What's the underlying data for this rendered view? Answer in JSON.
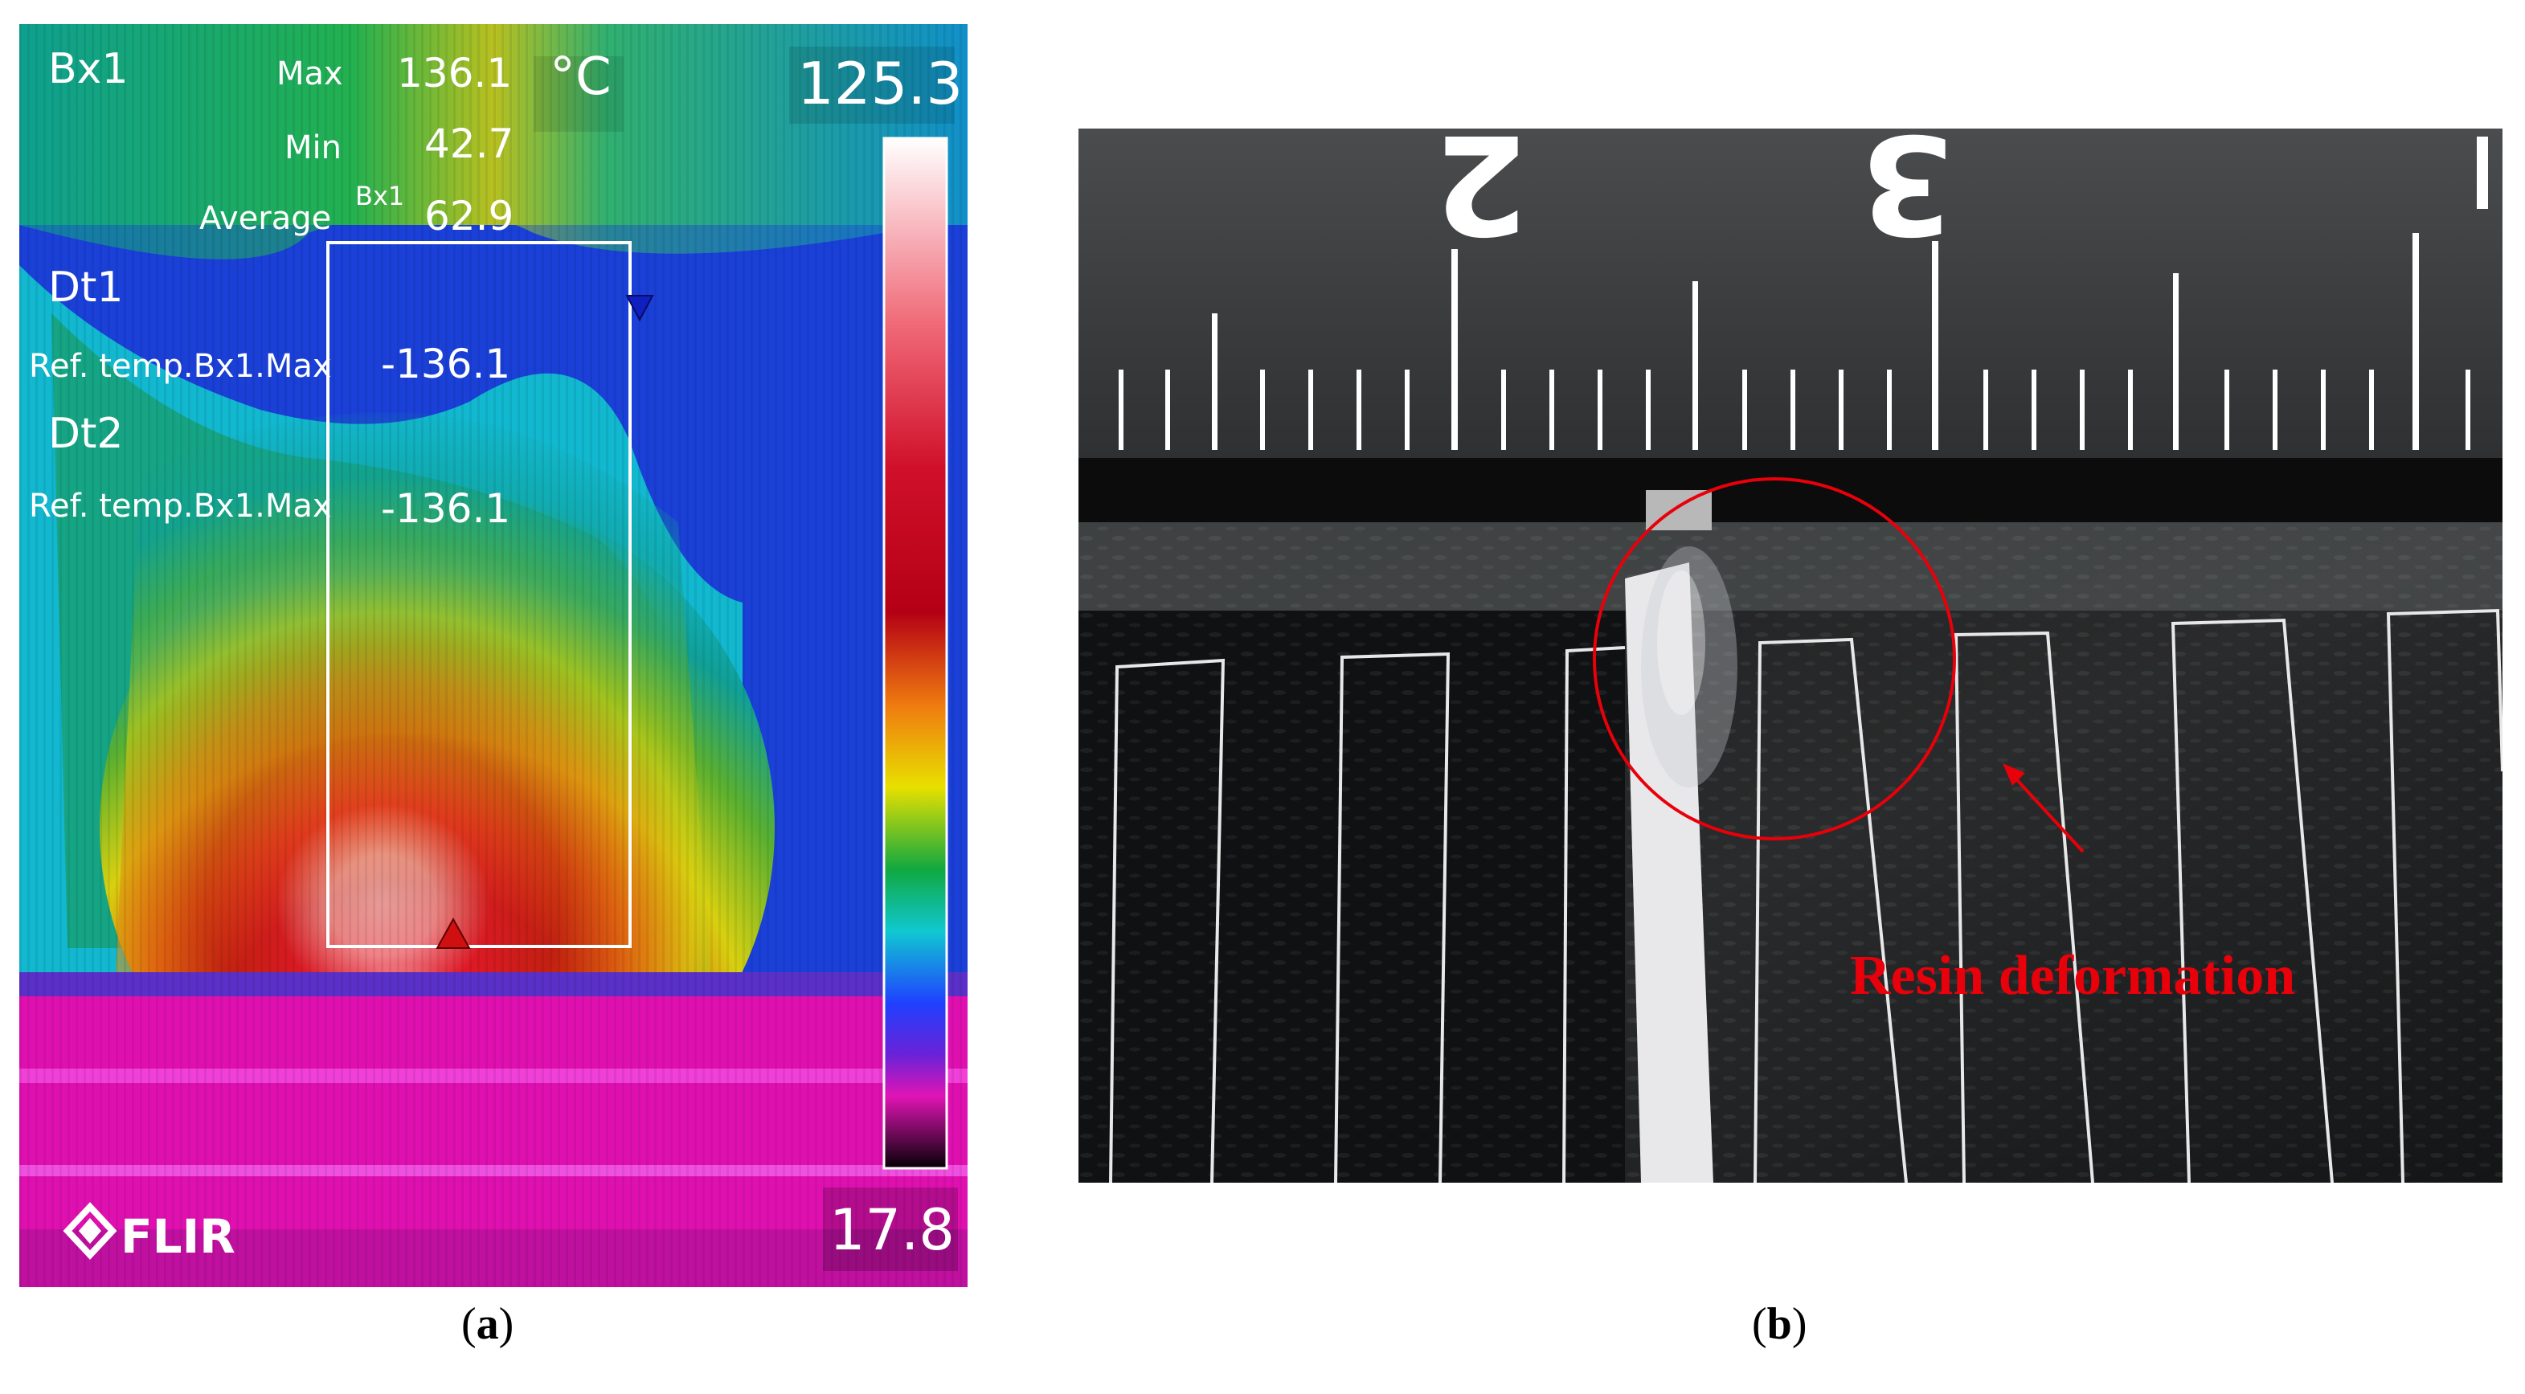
{
  "panel_a": {
    "box_label": "Bx1",
    "max_label": "Max",
    "max_value": "136.1",
    "unit": "°C",
    "min_label": "Min",
    "min_value": "42.7",
    "avg_label": "Average",
    "avg_sub": "Bx1",
    "avg_value": "62.9",
    "dt1_label": "Dt1",
    "dt1_ref": "Ref. temp.Bx1.Max",
    "dt1_value": "-136.1",
    "dt2_label": "Dt2",
    "dt2_ref": "Ref. temp.Bx1.Max",
    "dt2_value": "-136.1",
    "scale_max": "125.3",
    "scale_min": "17.8",
    "logo": "FLIR"
  },
  "panel_b": {
    "annotation": "Resin deformation",
    "ruler_digits": [
      "2",
      "3"
    ]
  },
  "captions": {
    "a": "a",
    "b": "b"
  },
  "colors": {
    "annotation_red": "#e8000a"
  }
}
